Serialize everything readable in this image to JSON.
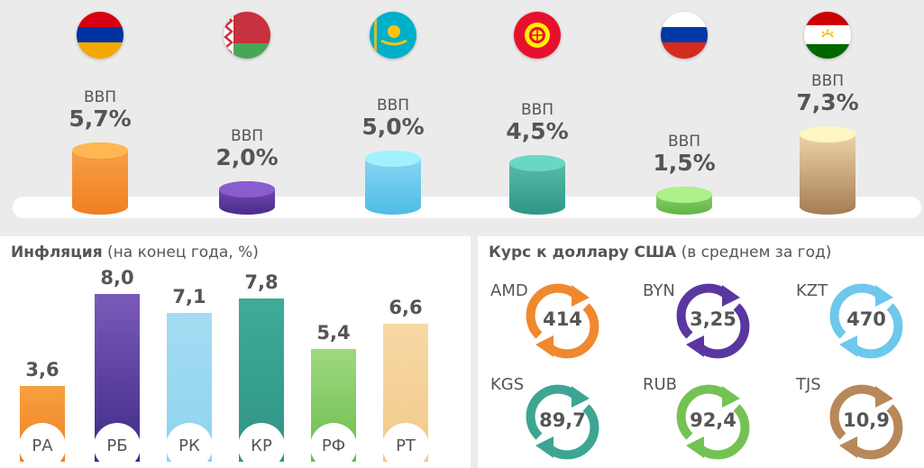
{
  "gdp": {
    "items": [
      {
        "country": "Armenia",
        "flag": "armenia-flag",
        "label": "ВВП",
        "value": "5,7%",
        "v": 5.7,
        "colors": [
          "#f7a34a",
          "#f07f22"
        ]
      },
      {
        "country": "Belarus",
        "flag": "belarus-flag",
        "label": "ВВП",
        "value": "2,0%",
        "v": 2.0,
        "colors": [
          "#7a53b8",
          "#4b2a8c"
        ]
      },
      {
        "country": "Kazakhstan",
        "flag": "kazakhstan-flag",
        "label": "ВВП",
        "value": "5,0%",
        "v": 5.0,
        "colors": [
          "#8fd8f2",
          "#4fbde6"
        ]
      },
      {
        "country": "Kyrgyzstan",
        "flag": "kyrgyzstan-flag",
        "label": "ВВП",
        "value": "4,5%",
        "v": 4.5,
        "colors": [
          "#5fc0ae",
          "#2e9686"
        ]
      },
      {
        "country": "Russia",
        "flag": "russia-flag",
        "label": "ВВП",
        "value": "1,5%",
        "v": 1.5,
        "colors": [
          "#9ad77c",
          "#5fb442"
        ]
      },
      {
        "country": "Tajikistan",
        "flag": "tajikistan-flag",
        "label": "ВВП",
        "value": "7,3%",
        "v": 7.3,
        "colors": [
          "#f4dcae",
          "#a57c55"
        ]
      }
    ]
  },
  "inflation": {
    "title_bold": "Инфляция",
    "title_rest": " (на конец года, %)"
  },
  "currency": {
    "title_bold": "Курс к доллару США",
    "title_rest": " (в среднем за год)",
    "items": [
      {
        "code": "AMD",
        "value": "414",
        "color": "#f0882e"
      },
      {
        "code": "BYN",
        "value": "3,25",
        "color": "#5a37a0"
      },
      {
        "code": "KZT",
        "value": "470",
        "color": "#6dc8ec"
      },
      {
        "code": "KGS",
        "value": "89,7",
        "color": "#3da593"
      },
      {
        "code": "RUB",
        "value": "92,4",
        "color": "#74c253"
      },
      {
        "code": "TJS",
        "value": "10,9",
        "color": "#b8875a"
      }
    ]
  },
  "chart_data": [
    {
      "type": "bar",
      "title": "ВВП",
      "categories": [
        "Armenia",
        "Belarus",
        "Kazakhstan",
        "Kyrgyzstan",
        "Russia",
        "Tajikistan"
      ],
      "values": [
        5.7,
        2.0,
        5.0,
        4.5,
        1.5,
        7.3
      ],
      "labels": [
        "5,7%",
        "2,0%",
        "5,0%",
        "4,5%",
        "1,5%",
        "7,3%"
      ]
    },
    {
      "type": "bar",
      "title": "Инфляция (на конец года, %)",
      "categories": [
        "РА",
        "РБ",
        "РК",
        "КР",
        "РФ",
        "РТ"
      ],
      "values": [
        3.6,
        8.0,
        7.1,
        7.8,
        5.4,
        6.6
      ],
      "labels": [
        "3,6",
        "8,0",
        "7,1",
        "7,8",
        "5,4",
        "6,6"
      ],
      "colors": [
        [
          "#f7a040",
          "#f07f22"
        ],
        [
          "#7a5ab8",
          "#3f2a86"
        ],
        [
          "#a3ddf3",
          "#8fd3ef"
        ],
        [
          "#3fab99",
          "#2f9484"
        ],
        [
          "#9fd880",
          "#6bbd4b"
        ],
        [
          "#f7d9a6",
          "#f1c98a"
        ]
      ]
    },
    {
      "type": "table",
      "title": "Курс к доллару США (в среднем за год)",
      "categories": [
        "AMD",
        "BYN",
        "KZT",
        "KGS",
        "RUB",
        "TJS"
      ],
      "values": [
        414,
        3.25,
        470,
        89.7,
        92.4,
        10.9
      ]
    }
  ]
}
